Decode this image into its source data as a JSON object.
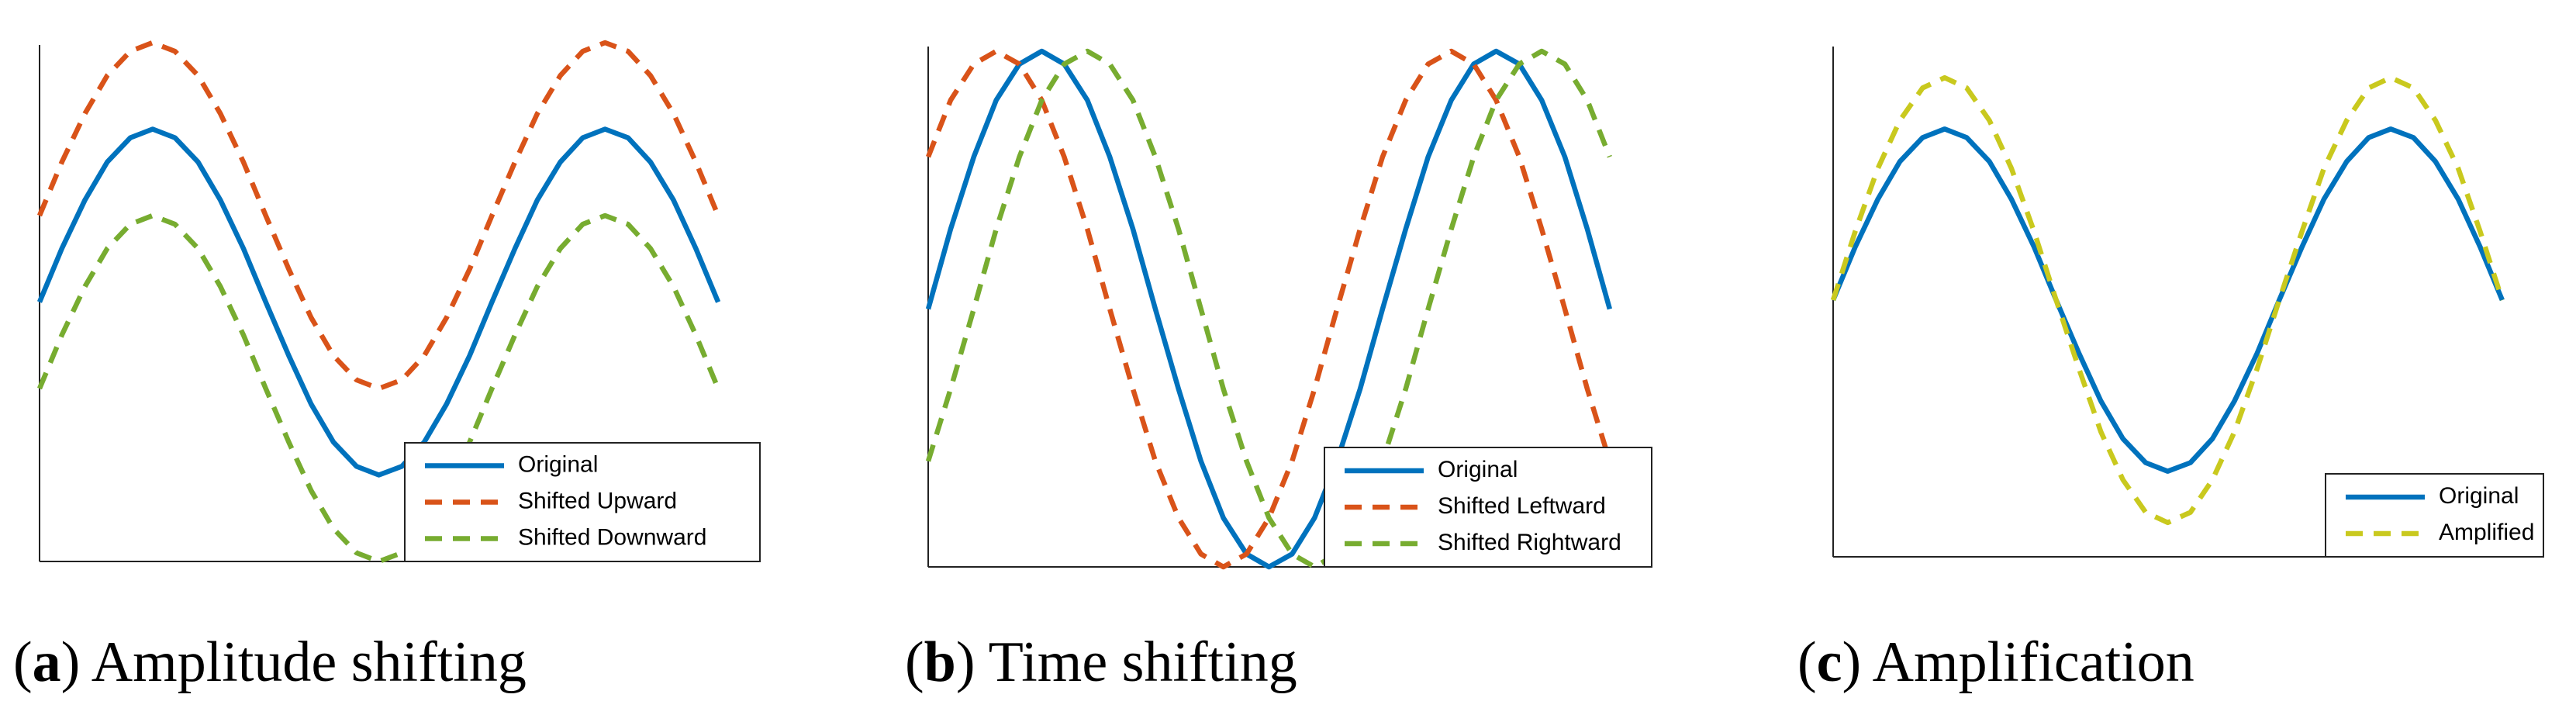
{
  "chart_data": [
    {
      "type": "line",
      "caption_parts": [
        "(",
        "a",
        ") Amplitude shifting"
      ],
      "legend": "lower right",
      "xlim": [
        0,
        10
      ],
      "ylim": [
        -1.5,
        1.5
      ],
      "x": [
        0,
        0.31,
        0.63,
        0.94,
        1.26,
        1.57,
        1.88,
        2.2,
        2.51,
        2.83,
        3.14,
        3.46,
        3.77,
        4.08,
        4.4,
        4.71,
        5.03,
        5.34,
        5.65,
        5.97,
        6.28,
        6.6,
        6.91,
        7.23,
        7.54,
        7.85,
        8.17,
        8.48,
        8.8,
        9.11,
        9.42
      ],
      "series": [
        {
          "name": "Original",
          "color": "#0072BD",
          "dashed": false,
          "values": [
            0,
            0.31,
            0.59,
            0.81,
            0.95,
            1,
            0.95,
            0.81,
            0.59,
            0.31,
            0,
            -0.31,
            -0.59,
            -0.81,
            -0.95,
            -1,
            -0.95,
            -0.81,
            -0.59,
            -0.31,
            0,
            0.31,
            0.59,
            0.81,
            0.95,
            1,
            0.95,
            0.81,
            0.59,
            0.31,
            0
          ]
        },
        {
          "name": "Shifted Upward",
          "color": "#D95319",
          "dashed": true,
          "values": [
            0.5,
            0.81,
            1.09,
            1.31,
            1.45,
            1.5,
            1.45,
            1.31,
            1.09,
            0.81,
            0.5,
            0.19,
            -0.09,
            -0.31,
            -0.45,
            -0.5,
            -0.45,
            -0.31,
            -0.09,
            0.19,
            0.5,
            0.81,
            1.09,
            1.31,
            1.45,
            1.5,
            1.45,
            1.31,
            1.09,
            0.81,
            0.5
          ]
        },
        {
          "name": "Shifted Downward",
          "color": "#77AC30",
          "dashed": true,
          "values": [
            -0.5,
            -0.19,
            0.09,
            0.31,
            0.45,
            0.5,
            0.45,
            0.31,
            0.09,
            -0.19,
            -0.5,
            -0.81,
            -1.09,
            -1.31,
            -1.45,
            -1.5,
            -1.45,
            -1.31,
            -1.09,
            -0.81,
            -0.5,
            -0.19,
            0.09,
            0.31,
            0.45,
            0.5,
            0.45,
            0.31,
            0.09,
            -0.19,
            -0.5
          ]
        }
      ]
    },
    {
      "type": "line",
      "caption_parts": [
        "(",
        "b",
        ") Time shifting"
      ],
      "legend": "lower right",
      "xlim": [
        0,
        10
      ],
      "ylim": [
        -1,
        1
      ],
      "x": [
        0,
        0.31,
        0.63,
        0.94,
        1.26,
        1.57,
        1.88,
        2.2,
        2.51,
        2.83,
        3.14,
        3.46,
        3.77,
        4.08,
        4.4,
        4.71,
        5.03,
        5.34,
        5.65,
        5.97,
        6.28,
        6.6,
        6.91,
        7.23,
        7.54,
        7.85,
        8.17,
        8.48,
        8.8,
        9.11,
        9.42
      ],
      "series": [
        {
          "name": "Original",
          "color": "#0072BD",
          "dashed": false,
          "values": [
            0,
            0.31,
            0.59,
            0.81,
            0.95,
            1,
            0.95,
            0.81,
            0.59,
            0.31,
            0,
            -0.31,
            -0.59,
            -0.81,
            -0.95,
            -1,
            -0.95,
            -0.81,
            -0.59,
            -0.31,
            0,
            0.31,
            0.59,
            0.81,
            0.95,
            1,
            0.95,
            0.81,
            0.59,
            0.31,
            0
          ]
        },
        {
          "name": "Shifted Leftward",
          "color": "#D95319",
          "dashed": true,
          "values": [
            0.59,
            0.81,
            0.95,
            1,
            0.95,
            0.81,
            0.59,
            0.31,
            0,
            -0.31,
            -0.59,
            -0.81,
            -0.95,
            -1,
            -0.95,
            -0.81,
            -0.59,
            -0.31,
            0,
            0.31,
            0.59,
            0.81,
            0.95,
            1,
            0.95,
            0.81,
            0.59,
            0.31,
            0,
            -0.31,
            -0.59
          ]
        },
        {
          "name": "Shifted Rightward",
          "color": "#77AC30",
          "dashed": true,
          "values": [
            -0.59,
            -0.31,
            0,
            0.31,
            0.59,
            0.81,
            0.95,
            1,
            0.95,
            0.81,
            0.59,
            0.31,
            0,
            -0.31,
            -0.59,
            -0.81,
            -0.95,
            -1,
            -0.95,
            -0.81,
            -0.59,
            -0.31,
            0,
            0.31,
            0.59,
            0.81,
            0.95,
            1,
            0.95,
            0.81,
            0.59
          ]
        }
      ]
    },
    {
      "type": "line",
      "caption_parts": [
        "(",
        "c",
        ") Amplification"
      ],
      "legend": "lower right",
      "xlim": [
        0,
        10
      ],
      "ylim": [
        -1.5,
        1.5
      ],
      "x": [
        0,
        0.31,
        0.63,
        0.94,
        1.26,
        1.57,
        1.88,
        2.2,
        2.51,
        2.83,
        3.14,
        3.46,
        3.77,
        4.08,
        4.4,
        4.71,
        5.03,
        5.34,
        5.65,
        5.97,
        6.28,
        6.6,
        6.91,
        7.23,
        7.54,
        7.85,
        8.17,
        8.48,
        8.8,
        9.11,
        9.42
      ],
      "series": [
        {
          "name": "Original",
          "color": "#0072BD",
          "dashed": false,
          "values": [
            0,
            0.31,
            0.59,
            0.81,
            0.95,
            1,
            0.95,
            0.81,
            0.59,
            0.31,
            0,
            -0.31,
            -0.59,
            -0.81,
            -0.95,
            -1,
            -0.95,
            -0.81,
            -0.59,
            -0.31,
            0,
            0.31,
            0.59,
            0.81,
            0.95,
            1,
            0.95,
            0.81,
            0.59,
            0.31,
            0
          ]
        },
        {
          "name": "Amplified",
          "color": "#C9C91E",
          "dashed": true,
          "values": [
            0,
            0.4,
            0.77,
            1.05,
            1.24,
            1.3,
            1.24,
            1.05,
            0.77,
            0.4,
            0,
            -0.4,
            -0.77,
            -1.05,
            -1.24,
            -1.3,
            -1.24,
            -1.05,
            -0.77,
            -0.4,
            0,
            0.4,
            0.77,
            1.05,
            1.24,
            1.3,
            1.24,
            1.05,
            0.77,
            0.4,
            0
          ]
        }
      ]
    }
  ]
}
